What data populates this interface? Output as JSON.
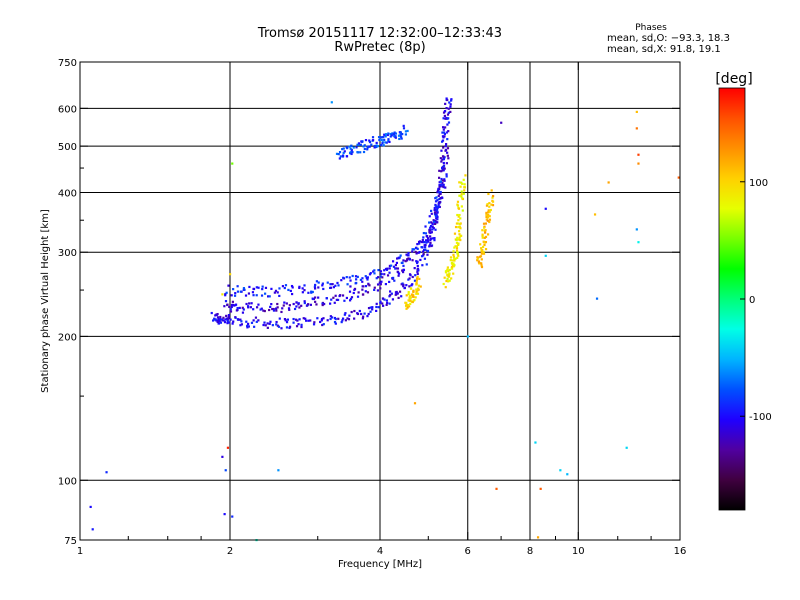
{
  "title": "Tromsø 20151117 12:32:00–12:33:43",
  "subtitle": "RwPretec (8p)",
  "stats": {
    "heading": "Phases",
    "o_line": "mean, sd,O: −93.3, 18.3",
    "x_line": "mean, sd,X:  91.8, 19.1"
  },
  "chart_data": {
    "type": "scatter",
    "xlabel": "Frequency [MHz]",
    "ylabel": "Stationary phase Virtual Height [km]",
    "x_scale": "log",
    "y_scale": "log",
    "xlim": [
      1,
      16
    ],
    "ylim": [
      75,
      750
    ],
    "x_ticks": [
      1,
      2,
      4,
      6,
      8,
      10,
      16
    ],
    "y_ticks": [
      75,
      100,
      200,
      300,
      400,
      500,
      600,
      750
    ],
    "grid_x": [
      2,
      4,
      6,
      8,
      10
    ],
    "grid_y": [
      100,
      200,
      300,
      400,
      500,
      600
    ],
    "grid": true,
    "colorbar": {
      "label": "[deg]",
      "range": [
        -180,
        180
      ],
      "ticks": [
        -100,
        0,
        100
      ],
      "colors": [
        "#000000",
        "#400040",
        "#5000a0",
        "#1f00ff",
        "#0050ff",
        "#00b4ff",
        "#00ffe6",
        "#00ff78",
        "#00ff00",
        "#78ff00",
        "#e6ff00",
        "#ffd000",
        "#ff9000",
        "#ff5000",
        "#ff0000"
      ]
    },
    "series": [
      {
        "x": [
          1.85,
          1.9,
          2.0,
          2.2,
          2.5,
          2.8,
          3.2,
          3.6,
          4.0,
          4.3,
          4.6,
          4.9,
          5.1,
          5.25,
          5.35,
          5.4,
          5.45,
          5.5
        ],
        "y": [
          220,
          217,
          216,
          214,
          213,
          214,
          217,
          222,
          232,
          245,
          262,
          290,
          330,
          390,
          450,
          520,
          580,
          630
        ],
        "phase": -105
      },
      {
        "x": [
          1.95,
          2.1,
          2.4,
          2.7,
          3.0,
          3.4,
          3.8,
          4.2,
          4.6,
          5.0,
          5.2,
          5.35,
          5.45
        ],
        "y": [
          232,
          230,
          229,
          231,
          236,
          243,
          252,
          265,
          285,
          315,
          360,
          420,
          500
        ],
        "phase": -110
      },
      {
        "x": [
          1.95,
          2.2,
          2.5,
          2.9,
          3.3,
          3.7,
          4.1,
          4.5,
          4.9,
          5.15,
          5.3
        ],
        "y": [
          250,
          248,
          249,
          253,
          258,
          265,
          276,
          292,
          320,
          360,
          420
        ],
        "phase": -95
      },
      {
        "x": [
          3.3,
          3.5,
          3.7,
          3.9,
          4.1,
          4.3,
          4.5
        ],
        "y": [
          480,
          490,
          500,
          510,
          515,
          525,
          540
        ],
        "phase": -85
      },
      {
        "x": [
          5.4,
          5.5,
          5.6,
          5.7,
          5.75,
          5.8,
          5.85
        ],
        "y": [
          260,
          270,
          285,
          305,
          335,
          380,
          430
        ],
        "phase": 90
      },
      {
        "x": [
          6.3,
          6.4,
          6.5,
          6.6,
          6.7
        ],
        "y": [
          280,
          300,
          330,
          360,
          400
        ],
        "phase": 110
      },
      {
        "x": [
          4.5,
          4.6,
          4.7,
          4.8
        ],
        "y": [
          230,
          240,
          250,
          262
        ],
        "phase": 100
      }
    ],
    "scatter_points": [
      {
        "x": 1.13,
        "y": 104,
        "phase": -90
      },
      {
        "x": 1.05,
        "y": 88,
        "phase": -100
      },
      {
        "x": 1.06,
        "y": 79,
        "phase": -95
      },
      {
        "x": 1.93,
        "y": 112,
        "phase": -110
      },
      {
        "x": 1.98,
        "y": 117,
        "phase": 170
      },
      {
        "x": 1.96,
        "y": 105,
        "phase": -80
      },
      {
        "x": 1.95,
        "y": 85,
        "phase": -100
      },
      {
        "x": 2.02,
        "y": 84,
        "phase": -90
      },
      {
        "x": 2.26,
        "y": 75,
        "phase": -20
      },
      {
        "x": 2.5,
        "y": 105,
        "phase": -60
      },
      {
        "x": 2.02,
        "y": 460,
        "phase": 50
      },
      {
        "x": 3.2,
        "y": 618,
        "phase": -60
      },
      {
        "x": 4.7,
        "y": 145,
        "phase": 120
      },
      {
        "x": 6.0,
        "y": 200,
        "phase": -50
      },
      {
        "x": 6.85,
        "y": 96,
        "phase": 150
      },
      {
        "x": 7.0,
        "y": 560,
        "phase": -120
      },
      {
        "x": 8.2,
        "y": 120,
        "phase": -40
      },
      {
        "x": 8.4,
        "y": 96,
        "phase": 150
      },
      {
        "x": 8.6,
        "y": 370,
        "phase": -100
      },
      {
        "x": 8.6,
        "y": 295,
        "phase": -40
      },
      {
        "x": 9.2,
        "y": 105,
        "phase": -40
      },
      {
        "x": 9.5,
        "y": 103,
        "phase": -50
      },
      {
        "x": 10.8,
        "y": 360,
        "phase": 110
      },
      {
        "x": 10.9,
        "y": 240,
        "phase": -70
      },
      {
        "x": 11.5,
        "y": 420,
        "phase": 120
      },
      {
        "x": 12.5,
        "y": 117,
        "phase": -40
      },
      {
        "x": 13.1,
        "y": 590,
        "phase": 110
      },
      {
        "x": 13.1,
        "y": 545,
        "phase": 140
      },
      {
        "x": 13.2,
        "y": 480,
        "phase": 160
      },
      {
        "x": 13.2,
        "y": 460,
        "phase": 130
      },
      {
        "x": 13.1,
        "y": 335,
        "phase": -60
      },
      {
        "x": 13.2,
        "y": 315,
        "phase": -30
      },
      {
        "x": 15.9,
        "y": 430,
        "phase": 150
      },
      {
        "x": 8.3,
        "y": 76,
        "phase": 120
      },
      {
        "x": 1.93,
        "y": 245,
        "phase": 90
      },
      {
        "x": 2.0,
        "y": 270,
        "phase": 100
      }
    ]
  }
}
